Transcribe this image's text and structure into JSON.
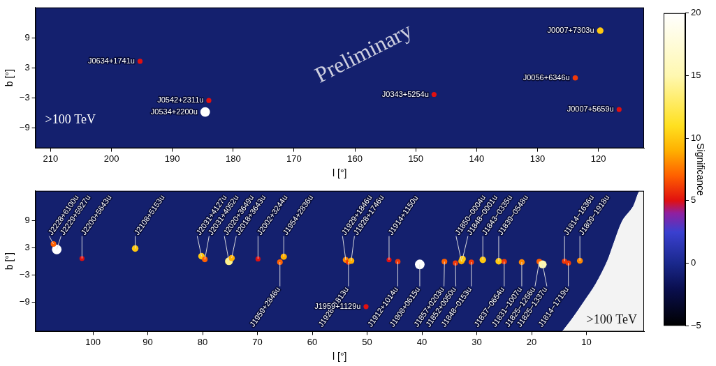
{
  "chart_data": [
    {
      "type": "scatter",
      "xlabel": "l [°]",
      "ylabel": "b [°]",
      "xlim": [
        212.5,
        112.5
      ],
      "xticks": [
        210,
        200,
        190,
        180,
        170,
        160,
        150,
        140,
        130,
        120
      ],
      "ylim": [
        -13,
        15
      ],
      "yticks": [
        {
          "value": -9,
          "label": "−9"
        },
        {
          "value": -3,
          "label": "−3"
        },
        3,
        9
      ],
      "grid": false,
      "watermark": "Preliminary",
      "annotation": ">100 TeV",
      "labels": [
        "J0634+1741u",
        "J0542+2311u",
        "J0534+2200u",
        "J0343+5254u",
        "J0056+6346u",
        "J0007+7303u",
        "J0007+5659u"
      ],
      "x": [
        195.3,
        184.0,
        184.6,
        147.0,
        123.8,
        119.7,
        116.6
      ],
      "values": [
        4.3,
        -3.5,
        -5.8,
        -2.3,
        1.0,
        10.4,
        -5.3
      ],
      "significance": [
        5,
        5,
        20,
        5,
        6,
        10,
        5
      ]
    },
    {
      "type": "scatter",
      "xlabel": "l [°]",
      "ylabel": "b [°]",
      "xlim": [
        110.5,
        -0.5
      ],
      "xticks": [
        100,
        90,
        80,
        70,
        60,
        50,
        40,
        30,
        20,
        10
      ],
      "ylim": [
        -15.5,
        15.5
      ],
      "yticks": [
        {
          "value": -9,
          "label": "−9"
        },
        {
          "value": -3,
          "label": "−3"
        },
        3,
        9
      ],
      "grid": false,
      "annotation": ">100 TeV",
      "labels": [
        "J2229+5927u",
        "J2228+6100u",
        "J2200+5643u",
        "J2108+5153u",
        "J2031+4127u",
        "J2031+4052u",
        "J2020+3649u",
        "J2018+3643u",
        "J2002+3244u",
        "J1959+2846u",
        "J1954+2836u",
        "J1929+1846u",
        "J1928+1813u",
        "J1928+1746u",
        "J1959+1129u",
        "J1914+1150u",
        "J1912+1014u",
        "J1908+0615u",
        "J1857+0203u",
        "J1852+0050u",
        "J1850−0004u",
        "J1848−0001u",
        "J1848−0153u",
        "J1843−0335u",
        "J1839−0548u",
        "J1837−0654u",
        "J1831−1007u",
        "J1825−1256u",
        "J1825−1337u",
        "J1814−1636u",
        "J1814−1719u",
        "J1809−1918u"
      ],
      "x": [
        106.6,
        107.2,
        102.0,
        92.3,
        80.2,
        79.6,
        75.2,
        74.7,
        69.9,
        65.9,
        65.2,
        53.9,
        53.4,
        52.9,
        50.2,
        46.0,
        44.4,
        40.4,
        35.9,
        33.9,
        32.8,
        32.6,
        31.0,
        28.9,
        26.0,
        25.0,
        21.8,
        18.6,
        18.0,
        14.0,
        13.3,
        11.2
      ],
      "values": [
        2.6,
        3.8,
        0.6,
        2.8,
        1.1,
        0.4,
        0.0,
        0.7,
        0.5,
        -0.2,
        1.0,
        0.3,
        -0.2,
        0.1,
        -10.0,
        0.3,
        -0.1,
        -0.7,
        -0.1,
        -0.4,
        0.0,
        0.5,
        -0.2,
        0.3,
        0.0,
        -0.1,
        -0.2,
        -0.1,
        -0.7,
        0.0,
        -0.4,
        0.1
      ],
      "significance": [
        20,
        7,
        5,
        10,
        10,
        7,
        14,
        9,
        5,
        7,
        9,
        8,
        6,
        9,
        5,
        5,
        6,
        20,
        7,
        6,
        9,
        10,
        6,
        10,
        10,
        6,
        8,
        7,
        15,
        6,
        6,
        8
      ],
      "unobserved_boundary": [
        [
          -0.5,
          15.5
        ],
        [
          0.3,
          15.5
        ],
        [
          1.5,
          12
        ],
        [
          3.4,
          9
        ],
        [
          5.0,
          4
        ],
        [
          6.2,
          0
        ],
        [
          8.3,
          -5
        ],
        [
          10.5,
          -9
        ],
        [
          12.5,
          -12.5
        ],
        [
          14.4,
          -15.5
        ]
      ]
    }
  ],
  "colorbar": {
    "label": "Significance",
    "range": [
      -5,
      20
    ],
    "ticks": [
      {
        "value": -5,
        "label": "−5"
      },
      0,
      5,
      10,
      15,
      20
    ]
  }
}
